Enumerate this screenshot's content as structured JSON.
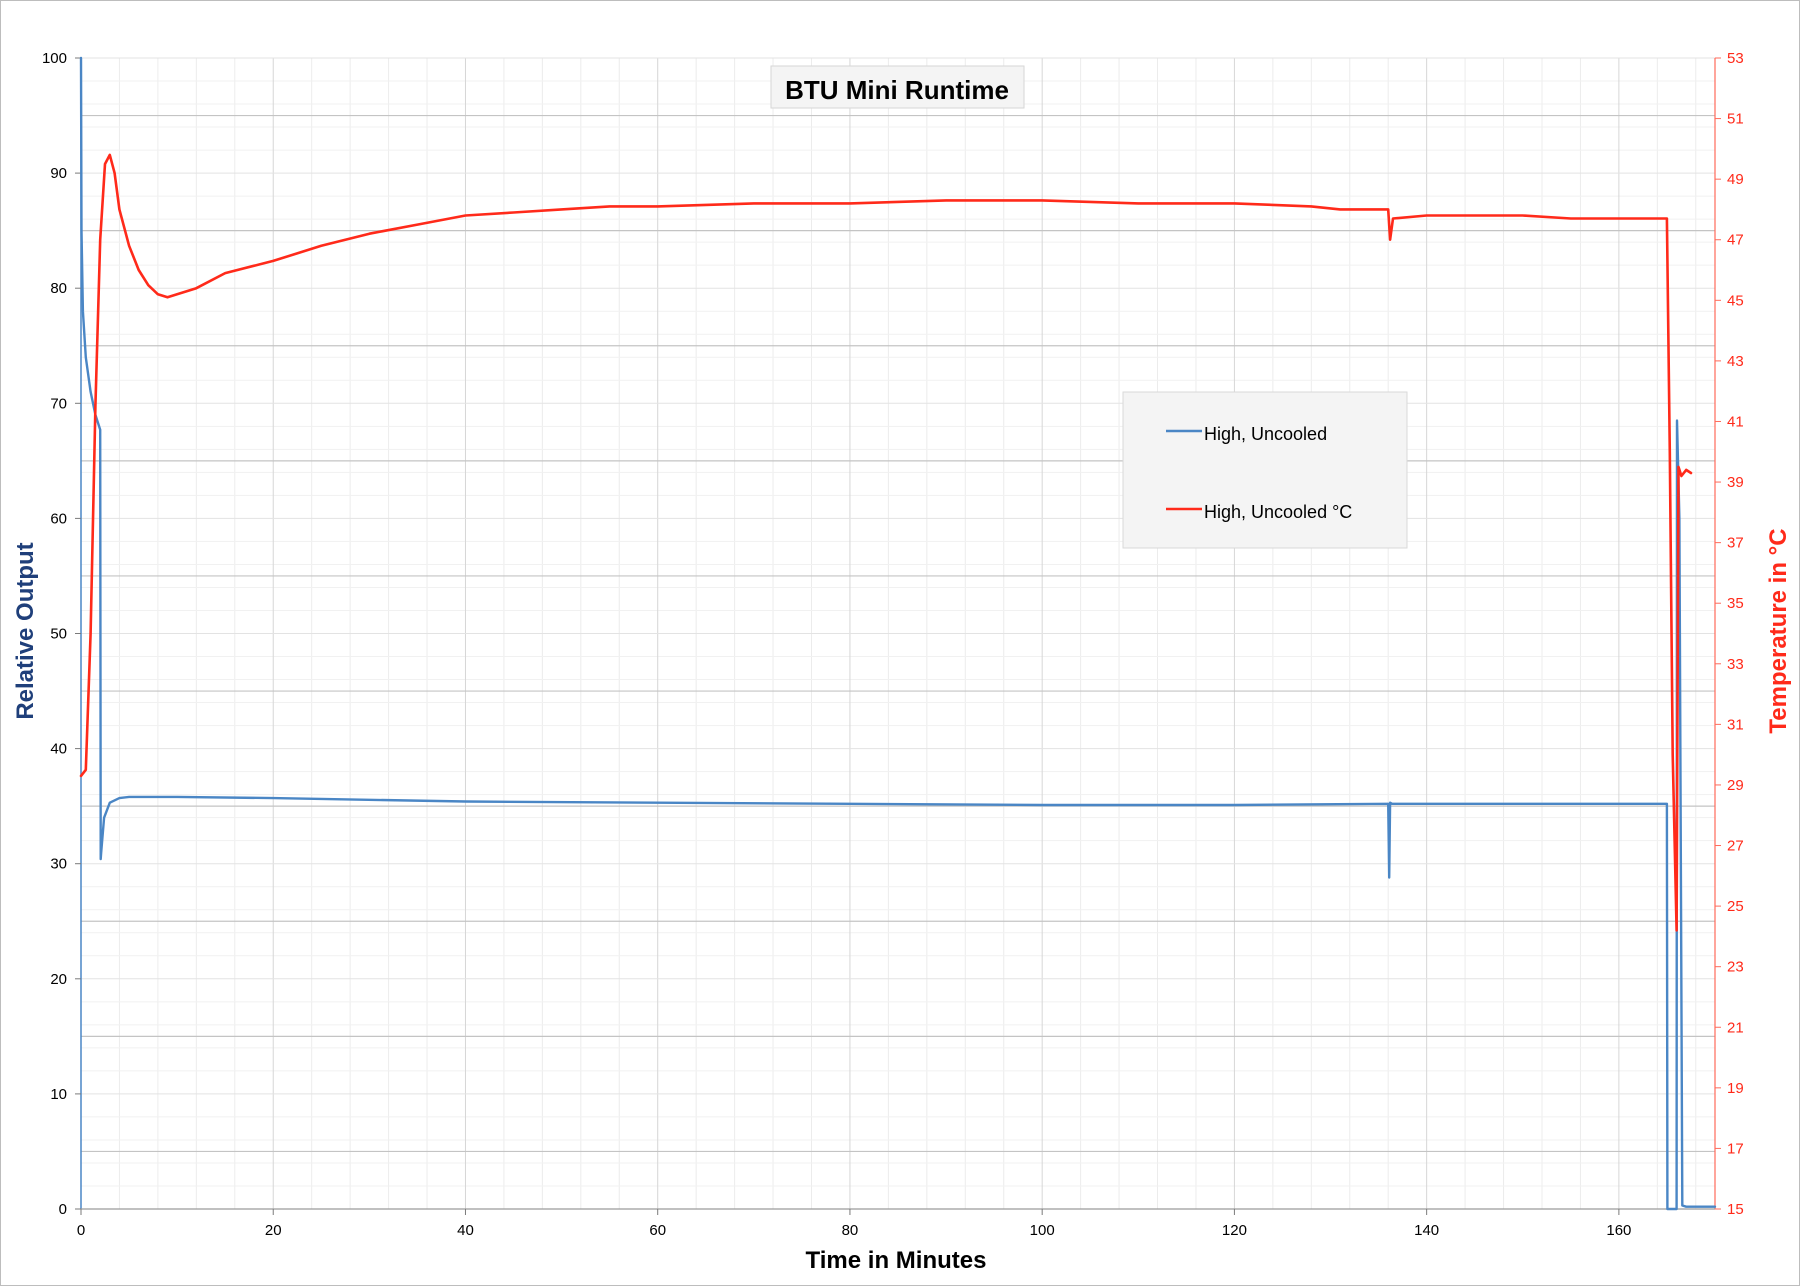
{
  "chart_data": {
    "type": "line",
    "title": "BTU Mini Runtime",
    "xlabel": "Time in Minutes",
    "ylabel": "Relative Output",
    "y2label": "Temperature in °C",
    "xlim": [
      0,
      170
    ],
    "ylim": [
      0,
      100
    ],
    "y2lim": [
      15,
      53
    ],
    "x_ticks": [
      0,
      20,
      40,
      60,
      80,
      100,
      120,
      140,
      160
    ],
    "y_ticks": [
      0,
      10,
      20,
      30,
      40,
      50,
      60,
      70,
      80,
      90,
      100
    ],
    "y2_ticks": [
      15,
      17,
      19,
      21,
      23,
      25,
      27,
      29,
      31,
      33,
      35,
      37,
      39,
      41,
      43,
      45,
      47,
      49,
      51,
      53
    ],
    "grid": true,
    "legend": "center-right",
    "series": [
      {
        "name": "High, Uncooled",
        "axis": "left",
        "color": "#4a86c5",
        "x": [
          0,
          0.05,
          0.2,
          0.5,
          1.0,
          1.5,
          2.0,
          2.05,
          2.1,
          2.4,
          3,
          4,
          5,
          10,
          20,
          40,
          60,
          80,
          100,
          120,
          136,
          136.1,
          136.2,
          136.4,
          140,
          160,
          165,
          165.05,
          166,
          166.05,
          166.3,
          166.6,
          167,
          170
        ],
        "y": [
          100,
          85,
          78,
          74,
          71,
          69,
          67.7,
          30.4,
          31,
          34,
          35.3,
          35.7,
          35.8,
          35.8,
          35.7,
          35.4,
          35.3,
          35.2,
          35.1,
          35.1,
          35.2,
          28.8,
          35.3,
          35.2,
          35.2,
          35.2,
          35.2,
          0,
          0,
          68.5,
          60,
          0.3,
          0.2,
          0.2
        ]
      },
      {
        "name": "High, Uncooled  °C",
        "axis": "right",
        "color": "#ff2a1a",
        "x": [
          0,
          0.5,
          1.0,
          1.5,
          2.0,
          2.5,
          3.0,
          3.5,
          4,
          5,
          6,
          7,
          8,
          9,
          10,
          12,
          15,
          20,
          25,
          30,
          35,
          40,
          45,
          50,
          55,
          60,
          70,
          80,
          90,
          100,
          110,
          120,
          128,
          131,
          136,
          136.2,
          136.5,
          140,
          145,
          150,
          155,
          160,
          165,
          165.3,
          165.6,
          166,
          166.2,
          166.5,
          167,
          167.5
        ],
        "y": [
          29.3,
          29.5,
          34,
          41.5,
          47,
          49.5,
          49.8,
          49.2,
          48,
          46.8,
          46,
          45.5,
          45.2,
          45.1,
          45.2,
          45.4,
          45.9,
          46.3,
          46.8,
          47.2,
          47.5,
          47.8,
          47.9,
          48.0,
          48.1,
          48.1,
          48.2,
          48.2,
          48.3,
          48.3,
          48.2,
          48.2,
          48.1,
          48.0,
          48.0,
          47.0,
          47.7,
          47.8,
          47.8,
          47.8,
          47.7,
          47.7,
          47.7,
          40,
          30,
          24.2,
          39.5,
          39.2,
          39.4,
          39.3
        ]
      }
    ]
  }
}
